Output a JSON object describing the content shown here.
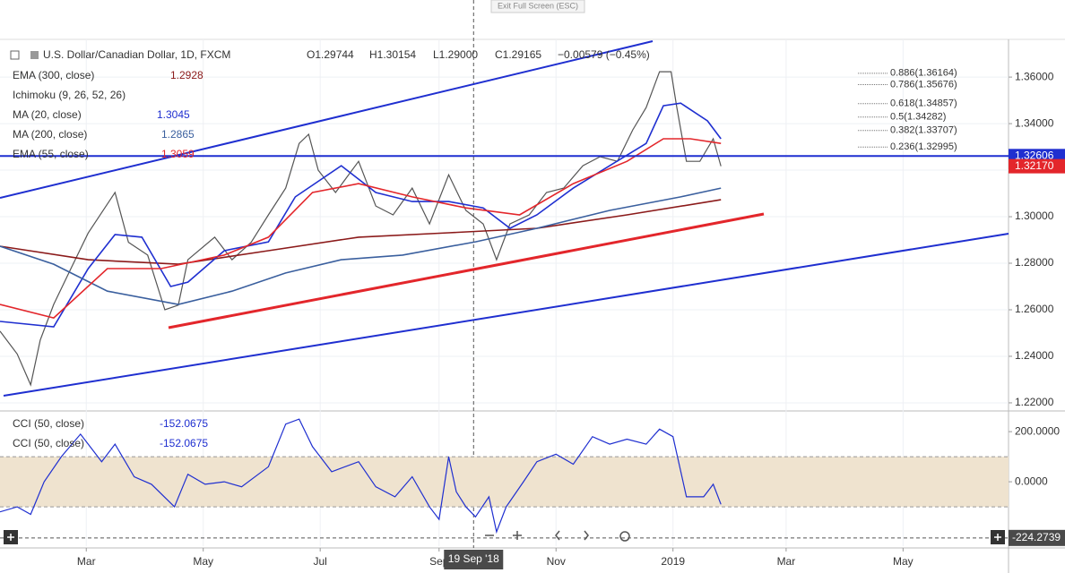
{
  "toolbar": {
    "exit": "Exit Full Screen (ESC)"
  },
  "chart_data": [
    {
      "type": "line",
      "title": "U.S. Dollar/Canadian Dollar, 1D, FXCM",
      "ohlc": [
        "O1.29744",
        "H1.30154",
        "L1.29000",
        "C1.29165",
        "−0.00579 (−0.45%)"
      ],
      "hidden_indicator": "Ichimoku (9, 26, 52, 26)",
      "xlim": [
        14,
        540
      ],
      "ylim": [
        1.2169,
        1.3762
      ],
      "xticks": [
        {
          "value": 59,
          "label": "Mar"
        },
        {
          "value": 120,
          "label": "May"
        },
        {
          "value": 181,
          "label": "Jul"
        },
        {
          "value": 243,
          "label": "Sep"
        },
        {
          "value": 304,
          "label": "Nov"
        },
        {
          "value": 365,
          "label": "2019"
        },
        {
          "value": 424,
          "label": "Mar"
        },
        {
          "value": 485,
          "label": "May"
        }
      ],
      "yticks": [
        {
          "value": 1.36,
          "label": "1.36000"
        },
        {
          "value": 1.34,
          "label": "1.34000"
        },
        {
          "value": 1.32,
          "label": "1.32000"
        },
        {
          "value": 1.3,
          "label": "1.30000"
        },
        {
          "value": 1.28,
          "label": "1.28000"
        },
        {
          "value": 1.26,
          "label": "1.26000"
        },
        {
          "value": 1.24,
          "label": "1.24000"
        },
        {
          "value": 1.22,
          "label": "1.22000"
        }
      ],
      "grid": true,
      "crosshair_x": {
        "value": 261,
        "label": "19 Sep '18"
      },
      "horizontal_line": {
        "value": 1.32606,
        "label": "1.32606"
      },
      "last_price": {
        "value": 1.3217,
        "label": "1.32170"
      },
      "fib_levels": [
        {
          "value": 1.36164,
          "label": "0.886(1.36164)"
        },
        {
          "value": 1.35676,
          "label": "0.786(1.35676)"
        },
        {
          "value": 1.34857,
          "label": "0.618(1.34857)"
        },
        {
          "value": 1.34282,
          "label": "0.5(1.34282)"
        },
        {
          "value": 1.33707,
          "label": "0.382(1.33707)"
        },
        {
          "value": 1.32995,
          "label": "0.236(1.32995)"
        }
      ],
      "series": [
        {
          "color": "#555555",
          "x": [
            14,
            23,
            30,
            35,
            42,
            51,
            60,
            74,
            81,
            91,
            100,
            107,
            112,
            126,
            135,
            145,
            154,
            163,
            170,
            175,
            180,
            189,
            201,
            210,
            219,
            229,
            238,
            248,
            257,
            266,
            273,
            280,
            290,
            299,
            308,
            318,
            327,
            336,
            344,
            351,
            358,
            364,
            367,
            372,
            379,
            386,
            390
          ],
          "values": [
            1.2508,
            1.241,
            1.2277,
            1.247,
            1.2623,
            1.2777,
            1.293,
            1.3104,
            1.289,
            1.2835,
            1.26,
            1.262,
            1.2815,
            1.2912,
            1.2815,
            1.289,
            1.3008,
            1.3123,
            1.3315,
            1.3354,
            1.32,
            1.3104,
            1.3238,
            1.3046,
            1.3008,
            1.3123,
            1.2969,
            1.318,
            1.3027,
            1.2969,
            1.2815,
            1.2969,
            1.3008,
            1.3104,
            1.3123,
            1.3219,
            1.3258,
            1.3238,
            1.3373,
            1.3469,
            1.3623,
            1.3623,
            1.3469,
            1.3238,
            1.3238,
            1.3335,
            1.3217
          ]
        },
        {
          "name": "EMA (300, close)",
          "last": 1.2928,
          "color": "#8b1a1a",
          "x": [
            14,
            60,
            107,
            154,
            201,
            248,
            294,
            341,
            390
          ],
          "values": [
            1.2873,
            1.2815,
            1.2796,
            1.2854,
            1.2912,
            1.2931,
            1.295,
            1.3008,
            1.3073
          ]
        },
        {
          "name": "MA (20, close)",
          "last": 1.3045,
          "color": "#1f2fd0",
          "x": [
            14,
            42,
            60,
            74,
            88,
            103,
            112,
            131,
            154,
            168,
            192,
            210,
            229,
            248,
            266,
            280,
            294,
            313,
            332,
            351,
            360,
            369,
            383,
            390
          ],
          "values": [
            1.255,
            1.2527,
            1.2777,
            1.2923,
            1.2912,
            1.27,
            1.2719,
            1.2854,
            1.2892,
            1.3085,
            1.3219,
            1.3104,
            1.3065,
            1.3065,
            1.3038,
            1.295,
            1.3008,
            1.3123,
            1.3219,
            1.3315,
            1.3477,
            1.3488,
            1.3412,
            1.3335
          ]
        },
        {
          "name": "MA (200, close)",
          "last": 1.2865,
          "color": "#3a5f9e",
          "x": [
            14,
            42,
            70,
            107,
            135,
            163,
            192,
            224,
            262,
            294,
            332,
            369,
            390
          ],
          "values": [
            1.2873,
            1.2796,
            1.268,
            1.2623,
            1.268,
            1.2758,
            1.2815,
            1.2835,
            1.2892,
            1.295,
            1.3027,
            1.3085,
            1.3123
          ]
        },
        {
          "name": "EMA (55, close)",
          "last": 1.3059,
          "color": "#e3262b",
          "x": [
            14,
            42,
            70,
            98,
            131,
            154,
            177,
            201,
            229,
            257,
            285,
            313,
            341,
            360,
            374,
            390
          ],
          "values": [
            1.2623,
            1.2565,
            1.2777,
            1.2777,
            1.2835,
            1.2912,
            1.3104,
            1.3142,
            1.3085,
            1.3038,
            1.3008,
            1.3142,
            1.3238,
            1.3335,
            1.3335,
            1.3315
          ]
        }
      ]
    },
    {
      "type": "line",
      "xlim": [
        14,
        540
      ],
      "ylim": [
        -257,
        279
      ],
      "yticks": [
        {
          "value": 200,
          "label": "200.0000"
        },
        {
          "value": 0,
          "label": "0.0000"
        }
      ],
      "band": [
        -100,
        100
      ],
      "crosshair_y": -224.2739,
      "series": [
        {
          "name": "CCI (50, close)",
          "last": -152.0675,
          "color": "#1f2fd0",
          "x": [
            14,
            23,
            30,
            37,
            46,
            56,
            60,
            67,
            74,
            84,
            93,
            105,
            112,
            121,
            131,
            140,
            154,
            163,
            170,
            177,
            187,
            201,
            210,
            220,
            229,
            238,
            243,
            248,
            252,
            257,
            262,
            269,
            273,
            278,
            287,
            294,
            304,
            313,
            323,
            332,
            341,
            351,
            358,
            365,
            372,
            381,
            386,
            390
          ],
          "values": [
            -120,
            -100,
            -130,
            0,
            100,
            190,
            150,
            80,
            150,
            20,
            -10,
            -100,
            30,
            -10,
            0,
            -20,
            60,
            230,
            250,
            140,
            40,
            80,
            -20,
            -60,
            20,
            -100,
            -150,
            100,
            -40,
            -100,
            -140,
            -60,
            -200,
            -100,
            0,
            80,
            110,
            70,
            180,
            150,
            170,
            150,
            210,
            180,
            -60,
            -60,
            -10,
            -90
          ]
        },
        {
          "name": "CCI (50, close)",
          "last": -152.0675
        }
      ]
    }
  ]
}
